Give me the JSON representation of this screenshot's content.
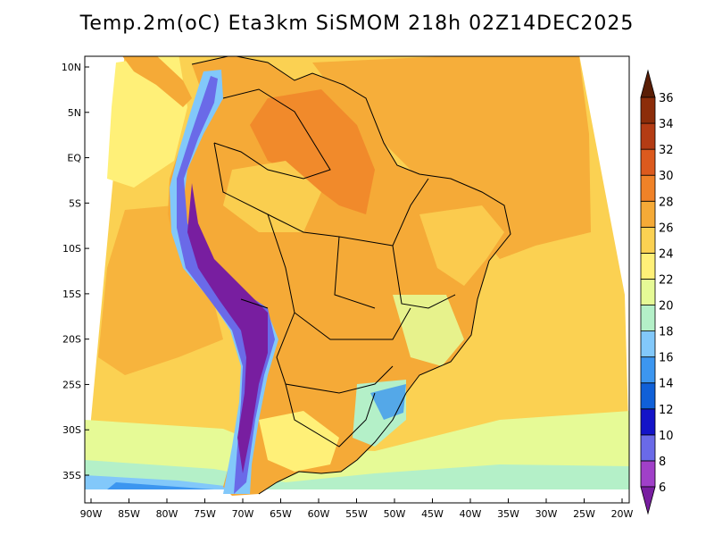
{
  "title": "Temp.2m(oC) Eta3km SiSMOM 218h 02Z14DEC2025",
  "map": {
    "lat_labels": [
      "10N",
      "5N",
      "EQ",
      "5S",
      "10S",
      "15S",
      "20S",
      "25S",
      "30S",
      "35S"
    ],
    "lat_values": [
      10,
      5,
      0,
      -5,
      -10,
      -15,
      -20,
      -25,
      -30,
      -35
    ],
    "lon_labels": [
      "90W",
      "85W",
      "80W",
      "75W",
      "70W",
      "65W",
      "60W",
      "55W",
      "50W",
      "45W",
      "40W",
      "35W",
      "30W",
      "25W",
      "20W"
    ],
    "lon_values": [
      -90,
      -85,
      -80,
      -75,
      -70,
      -65,
      -60,
      -55,
      -50,
      -45,
      -40,
      -35,
      -30,
      -25,
      -20
    ],
    "ocean_color": "#fbd152"
  },
  "colorbar": {
    "labels": [
      "6",
      "8",
      "10",
      "12",
      "14",
      "16",
      "18",
      "20",
      "22",
      "24",
      "26",
      "28",
      "30",
      "32",
      "34",
      "36"
    ],
    "colors": [
      "#781ea0",
      "#a040c8",
      "#6a6ae8",
      "#1414c8",
      "#1060d8",
      "#3c96f0",
      "#82c8fa",
      "#b4f0c8",
      "#e6fa96",
      "#fff078",
      "#fbd152",
      "#f5aa37",
      "#f08228",
      "#dc5a1e",
      "#b43c14",
      "#8c2d0a",
      "#5a1e06"
    ]
  }
}
